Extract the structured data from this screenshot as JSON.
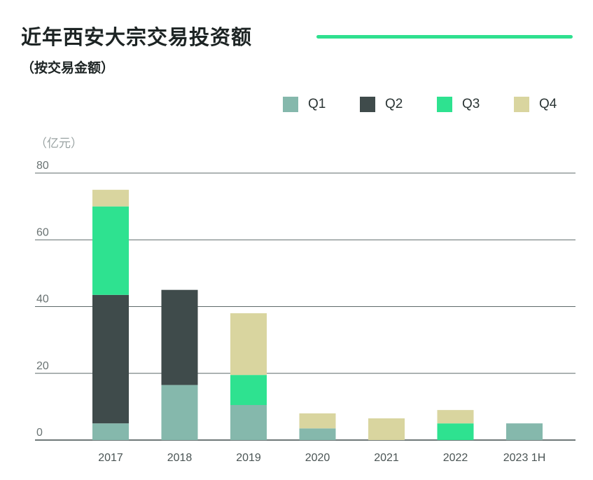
{
  "title": "近年西安大宗交易投资额",
  "subtitle": "（按交易金额）",
  "unit_label": "（亿元）",
  "colors": {
    "accent_line": "#2fe08f"
  },
  "legend": [
    {
      "label": "Q1",
      "color": "#85b8ac"
    },
    {
      "label": "Q2",
      "color": "#3f4b4b"
    },
    {
      "label": "Q3",
      "color": "#2ee290"
    },
    {
      "label": "Q4",
      "color": "#d9d59f"
    }
  ],
  "chart_data": {
    "type": "bar",
    "stacked": true,
    "categories": [
      "2017",
      "2018",
      "2019",
      "2020",
      "2021",
      "2022",
      "2023 1H"
    ],
    "series": [
      {
        "name": "Q1",
        "values": [
          5,
          16.5,
          10.5,
          3.5,
          0,
          0,
          5
        ]
      },
      {
        "name": "Q2",
        "values": [
          38.5,
          28.5,
          0,
          0,
          0,
          0,
          0
        ]
      },
      {
        "name": "Q3",
        "values": [
          26.5,
          0,
          9,
          0,
          0,
          5,
          0
        ]
      },
      {
        "name": "Q4",
        "values": [
          5,
          0,
          18.5,
          4.5,
          6.5,
          4,
          0
        ]
      }
    ],
    "yticks": [
      "0",
      "20",
      "40",
      "60",
      "80"
    ],
    "ylim": [
      0,
      80
    ],
    "grid": true,
    "legend_position": "top-right"
  }
}
